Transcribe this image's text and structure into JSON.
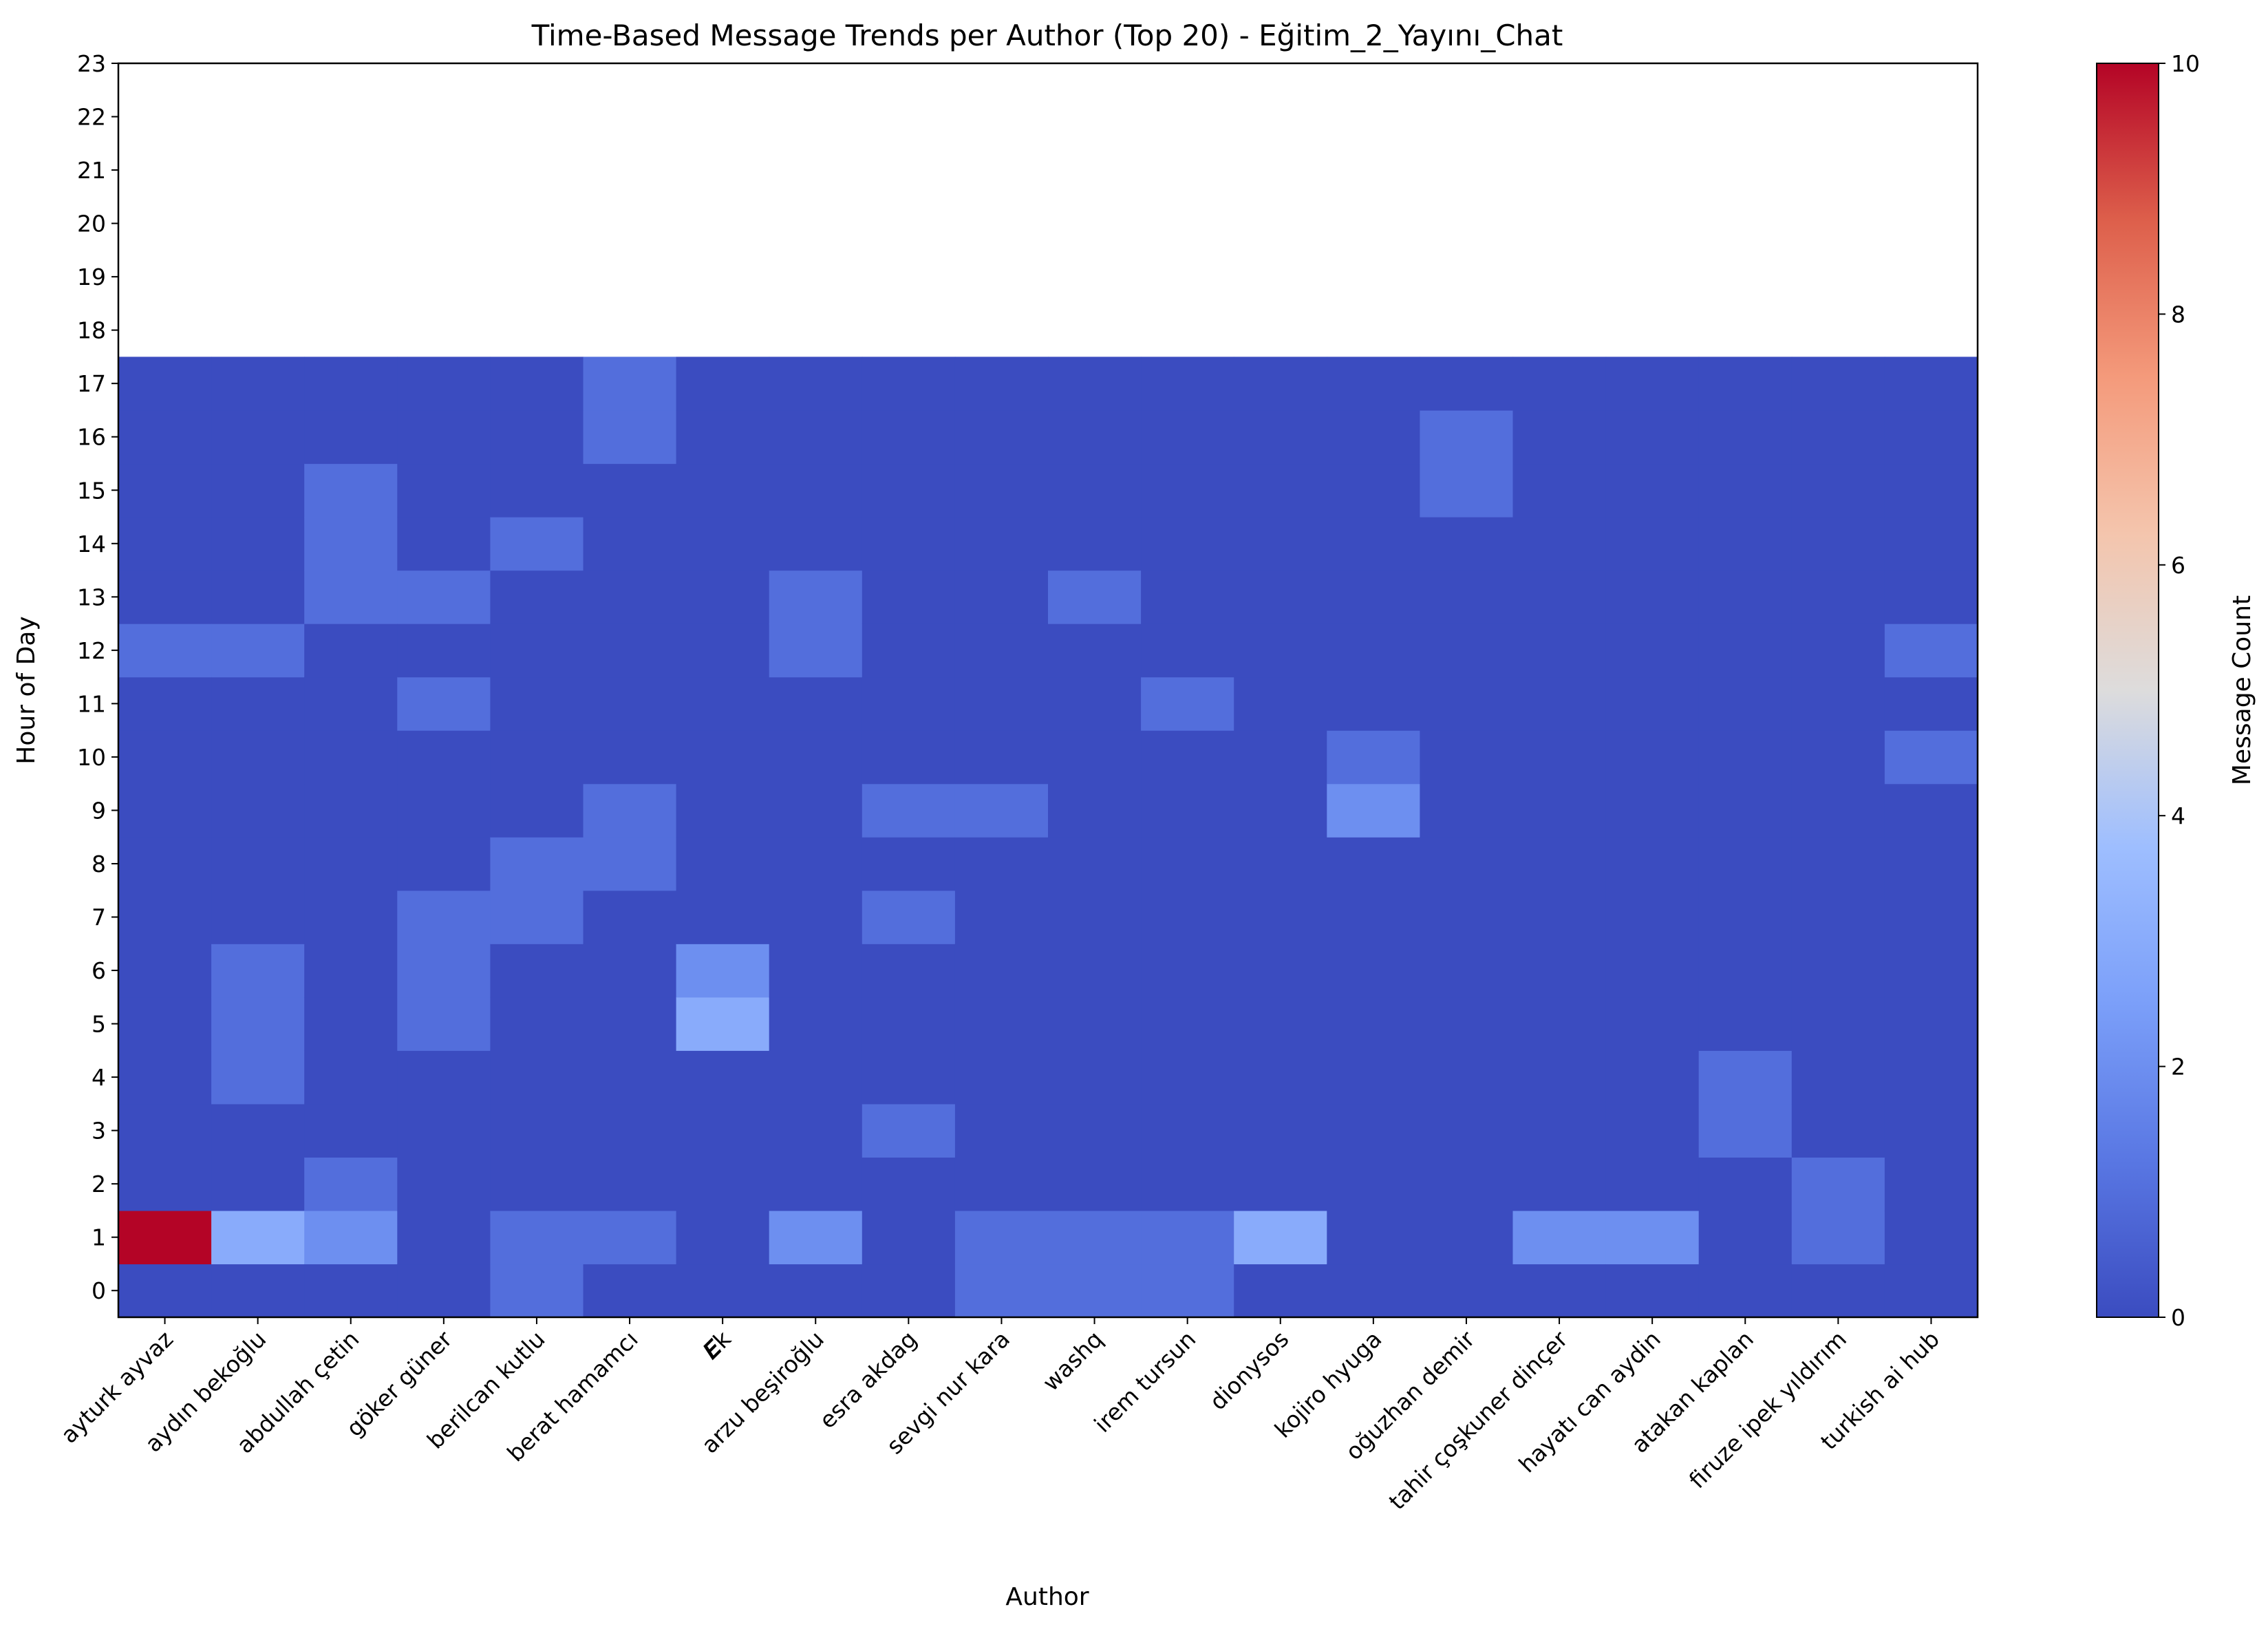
{
  "chart_data": {
    "type": "heatmap",
    "title": "Time-Based Message Trends per Author (Top 20) - Eğitim_2_Yayını_Chat",
    "xlabel": "Author",
    "ylabel": "Hour of Day",
    "colorbar_label": "Message Count",
    "colormap": "coolwarm",
    "vmin": 0,
    "vmax": 10,
    "colorbar_ticks": [
      0,
      2,
      4,
      6,
      8,
      10
    ],
    "authors": [
      "ayturk ayvaz",
      "aydın bekoğlu",
      "abdullah çetin",
      "göker güner",
      "berilcan kutlu",
      "berat hamamcı",
      "𝑬k",
      "arzu beşiroğlu",
      "esra akdag",
      "sevgi nur kara",
      "washq",
      "irem tursun",
      "dionysos",
      "kojiro hyuga",
      "oğuzhan demir",
      "tahir çoşkuner dinçer",
      "hayatı can aydin",
      "atakan kaplan",
      "firuze ipek yıldırım",
      "turkish ai hub"
    ],
    "hours": [
      0,
      1,
      2,
      3,
      4,
      5,
      6,
      7,
      8,
      9,
      10,
      11,
      12,
      13,
      14,
      15,
      16,
      17,
      18,
      19,
      20,
      21,
      22,
      23
    ],
    "hours_with_data": 18,
    "values": [
      [
        0,
        10,
        0,
        0,
        0,
        0,
        0,
        0,
        0,
        0,
        0,
        0,
        1,
        0,
        0,
        0,
        0,
        0
      ],
      [
        0,
        3,
        0,
        0,
        1,
        1,
        1,
        0,
        0,
        0,
        0,
        0,
        1,
        0,
        0,
        0,
        0,
        0
      ],
      [
        0,
        2,
        1,
        0,
        0,
        0,
        0,
        0,
        0,
        0,
        0,
        0,
        0,
        1,
        1,
        1,
        0,
        0
      ],
      [
        0,
        0,
        0,
        0,
        0,
        1,
        1,
        1,
        0,
        0,
        0,
        1,
        0,
        1,
        0,
        0,
        0,
        0
      ],
      [
        1,
        1,
        0,
        0,
        0,
        0,
        0,
        1,
        1,
        0,
        0,
        0,
        0,
        0,
        1,
        0,
        0,
        0
      ],
      [
        0,
        1,
        0,
        0,
        0,
        0,
        0,
        0,
        1,
        1,
        0,
        0,
        0,
        0,
        0,
        0,
        1,
        1
      ],
      [
        0,
        0,
        0,
        0,
        0,
        3,
        2,
        0,
        0,
        0,
        0,
        0,
        0,
        0,
        0,
        0,
        0,
        0
      ],
      [
        0,
        2,
        0,
        0,
        0,
        0,
        0,
        0,
        0,
        0,
        0,
        0,
        1,
        1,
        0,
        0,
        0,
        0
      ],
      [
        0,
        0,
        0,
        1,
        0,
        0,
        0,
        1,
        0,
        1,
        0,
        0,
        0,
        0,
        0,
        0,
        0,
        0
      ],
      [
        1,
        1,
        0,
        0,
        0,
        0,
        0,
        0,
        0,
        1,
        0,
        0,
        0,
        0,
        0,
        0,
        0,
        0
      ],
      [
        1,
        1,
        0,
        0,
        0,
        0,
        0,
        0,
        0,
        0,
        0,
        0,
        0,
        1,
        0,
        0,
        0,
        0
      ],
      [
        1,
        1,
        0,
        0,
        0,
        0,
        0,
        0,
        0,
        0,
        0,
        1,
        0,
        0,
        0,
        0,
        0,
        0
      ],
      [
        0,
        3,
        0,
        0,
        0,
        0,
        0,
        0,
        0,
        0,
        0,
        0,
        0,
        0,
        0,
        0,
        0,
        0
      ],
      [
        0,
        0,
        0,
        0,
        0,
        0,
        0,
        0,
        0,
        2,
        1,
        0,
        0,
        0,
        0,
        0,
        0,
        0
      ],
      [
        0,
        0,
        0,
        0,
        0,
        0,
        0,
        0,
        0,
        0,
        0,
        0,
        0,
        0,
        0,
        1,
        1,
        0
      ],
      [
        0,
        2,
        0,
        0,
        0,
        0,
        0,
        0,
        0,
        0,
        0,
        0,
        0,
        0,
        0,
        0,
        0,
        0
      ],
      [
        0,
        2,
        0,
        0,
        0,
        0,
        0,
        0,
        0,
        0,
        0,
        0,
        0,
        0,
        0,
        0,
        0,
        0
      ],
      [
        0,
        0,
        0,
        1,
        1,
        0,
        0,
        0,
        0,
        0,
        0,
        0,
        0,
        0,
        0,
        0,
        0,
        0
      ],
      [
        0,
        1,
        1,
        0,
        0,
        0,
        0,
        0,
        0,
        0,
        0,
        0,
        0,
        0,
        0,
        0,
        0,
        0
      ],
      [
        0,
        0,
        0,
        0,
        0,
        0,
        0,
        0,
        0,
        0,
        1,
        0,
        1,
        0,
        0,
        0,
        0,
        0
      ]
    ]
  }
}
